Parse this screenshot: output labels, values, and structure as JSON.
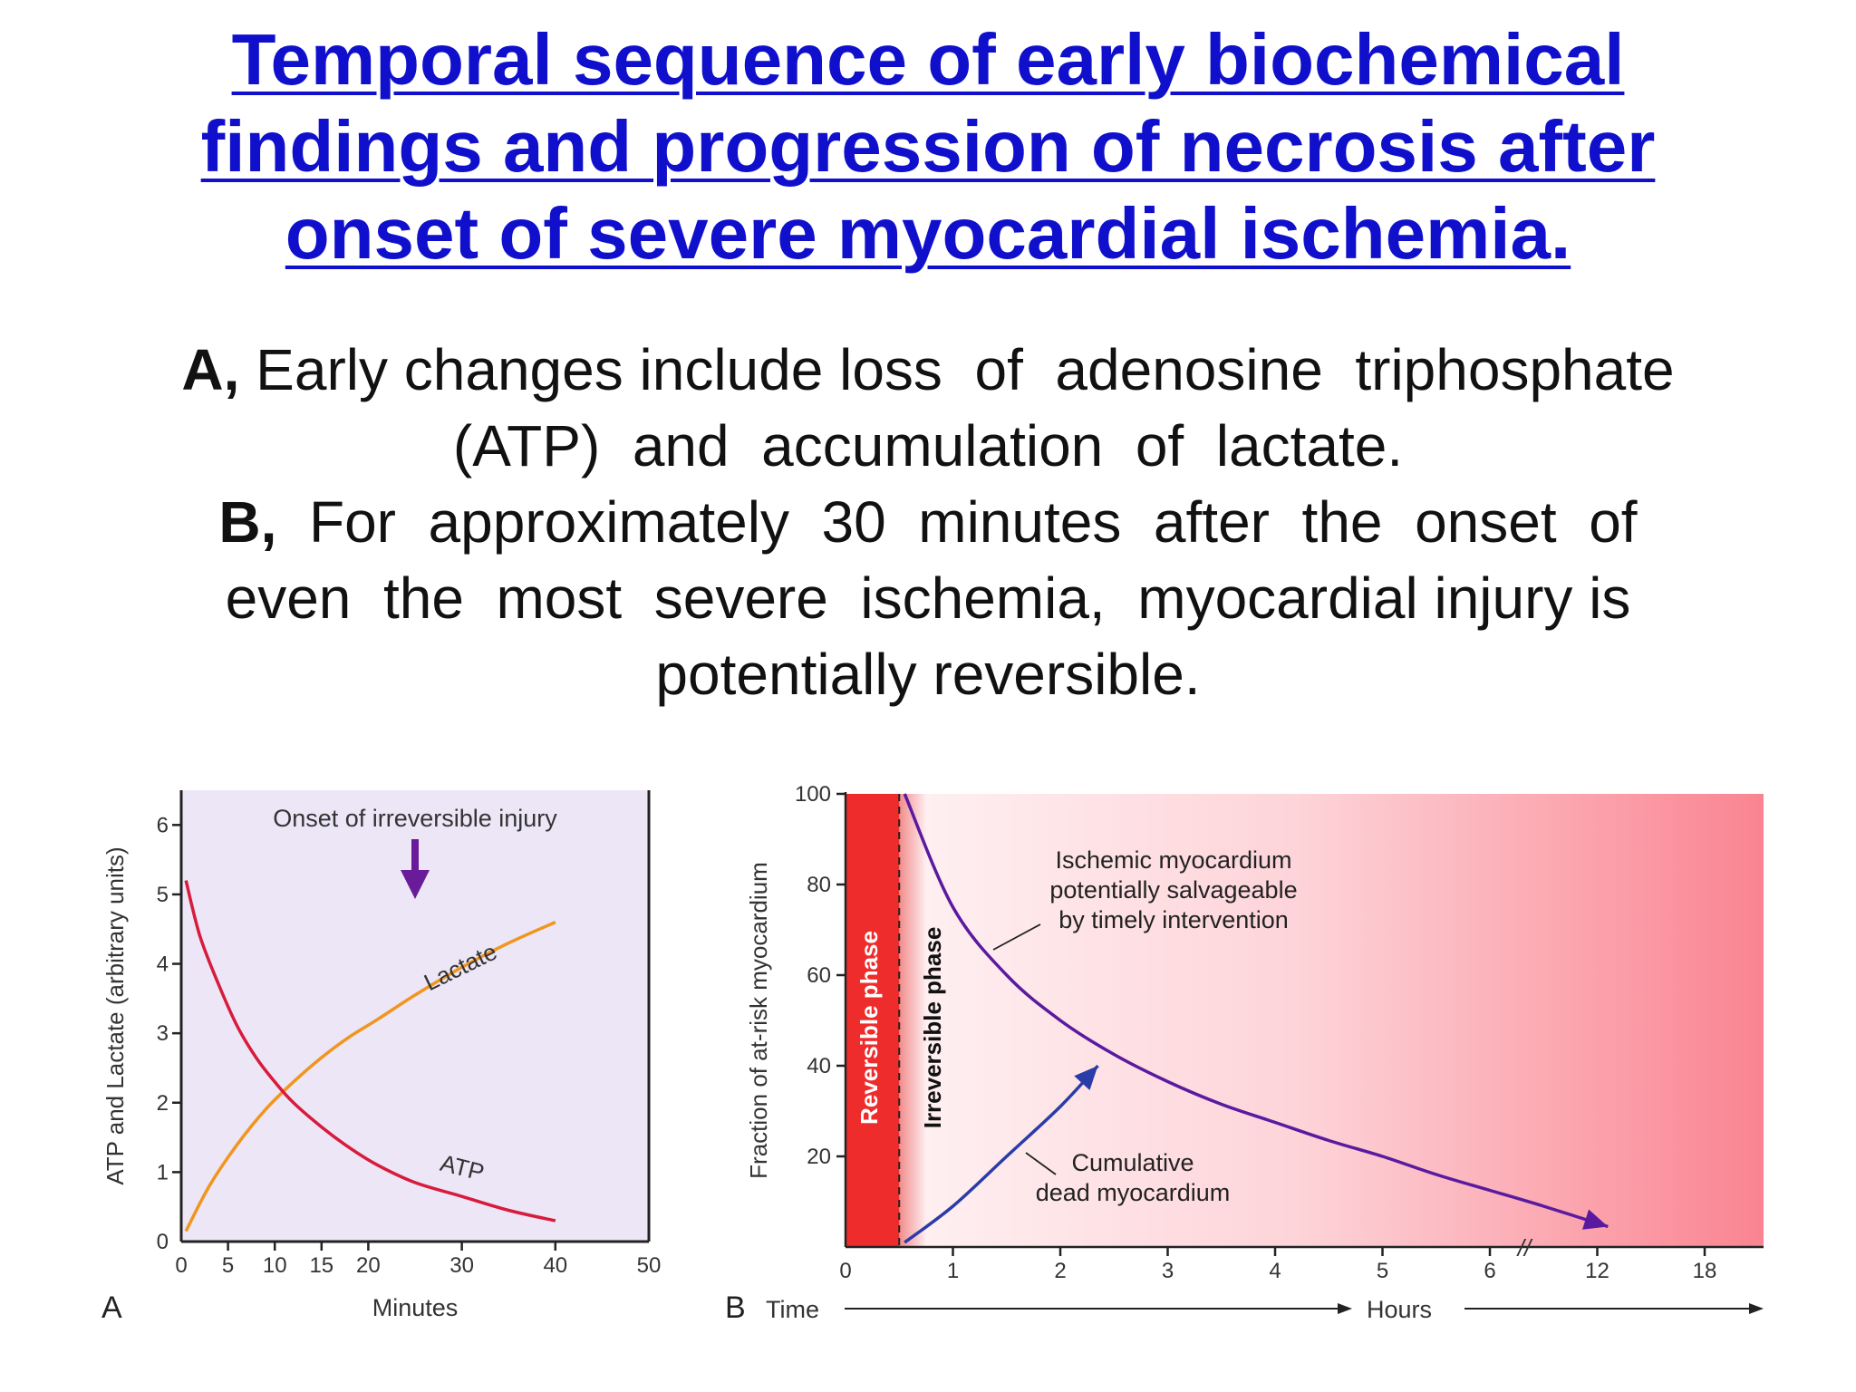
{
  "title_lines": [
    "Temporal sequence of early biochemical",
    "findings and progression of necrosis after",
    "onset of severe myocardial ischemia."
  ],
  "description": {
    "a_label": "A,",
    "a_line1": " Early changes include loss  of  adenosine  triphosphate",
    "a_line2": "(ATP)  and  accumulation  of  lactate.",
    "b_label": "B,",
    "b_line1": "  For  approximately  30  minutes  after  the  onset  of",
    "b_line2": "even  the  most  severe  ischemia,  myocardial injury is",
    "b_line3": "potentially reversible."
  },
  "colors": {
    "title": "#1010cc",
    "atp": "#d81b3c",
    "lactate": "#f0961e",
    "arrow_purple": "#6a1b9a",
    "panel_a_bg": "#ece6f7",
    "reversible_band": "#ee2c2c",
    "salvageable_curve": "#5a1aa0",
    "dead_curve": "#2a3ca8"
  },
  "chart_data": [
    {
      "type": "line",
      "panel_label": "A",
      "xlabel": "Minutes",
      "ylabel": "ATP and Lactate (arbitrary units)",
      "xlim": [
        0,
        50
      ],
      "ylim": [
        0,
        6.5
      ],
      "x_ticks": [
        0,
        5,
        10,
        15,
        20,
        30,
        40,
        50
      ],
      "y_ticks": [
        0,
        1,
        2,
        3,
        4,
        5,
        6
      ],
      "grid": false,
      "series": [
        {
          "name": "ATP",
          "x": [
            0.5,
            2,
            4,
            6,
            8,
            10,
            12,
            15,
            18,
            21,
            25,
            30,
            35,
            40
          ],
          "y": [
            5.2,
            4.4,
            3.7,
            3.1,
            2.65,
            2.3,
            2.0,
            1.65,
            1.35,
            1.1,
            0.85,
            0.65,
            0.45,
            0.3
          ]
        },
        {
          "name": "Lactate",
          "x": [
            0.5,
            3,
            6,
            9,
            12,
            15,
            18,
            21,
            25,
            30,
            35,
            40
          ],
          "y": [
            0.15,
            0.8,
            1.4,
            1.9,
            2.3,
            2.65,
            2.95,
            3.2,
            3.55,
            3.95,
            4.3,
            4.6
          ]
        }
      ],
      "annotations": [
        {
          "text": "Onset of irreversible injury",
          "x": 25
        }
      ]
    },
    {
      "type": "area",
      "panel_label": "B",
      "xlabel": "Time",
      "xlabel2": "Hours",
      "ylabel": "Fraction of at-risk myocardium",
      "ylim": [
        0,
        100
      ],
      "x_ticks": [
        "0",
        "1",
        "2",
        "3",
        "4",
        "5",
        "6",
        "12",
        "18"
      ],
      "y_ticks": [
        20,
        40,
        60,
        80,
        100
      ],
      "axis_break": "//",
      "grid": false,
      "phases": [
        {
          "name": "Reversible phase",
          "x_start": 0,
          "x_end": 0.5
        },
        {
          "name": "Irreversible phase",
          "x_start": 0.5
        }
      ],
      "series": [
        {
          "name": "Ischemic myocardium potentially salvageable by timely intervention",
          "label_lines": [
            "Ischemic myocardium",
            "potentially salvageable",
            "by timely intervention"
          ],
          "x": [
            0.55,
            1,
            1.5,
            2,
            2.5,
            3,
            3.5,
            4,
            4.5,
            5,
            5.5,
            6,
            6.5,
            7.1
          ],
          "y": [
            100,
            75,
            60,
            50,
            42.5,
            36.5,
            31.5,
            27.5,
            23.5,
            20,
            16,
            12.5,
            9,
            4.5
          ]
        },
        {
          "name": "Cumulative dead myocardium",
          "label_lines": [
            "Cumulative",
            "dead myocardium"
          ],
          "x": [
            0.55,
            1,
            1.5,
            2,
            2.35
          ],
          "y": [
            1,
            9,
            20,
            31,
            40
          ]
        }
      ]
    }
  ]
}
